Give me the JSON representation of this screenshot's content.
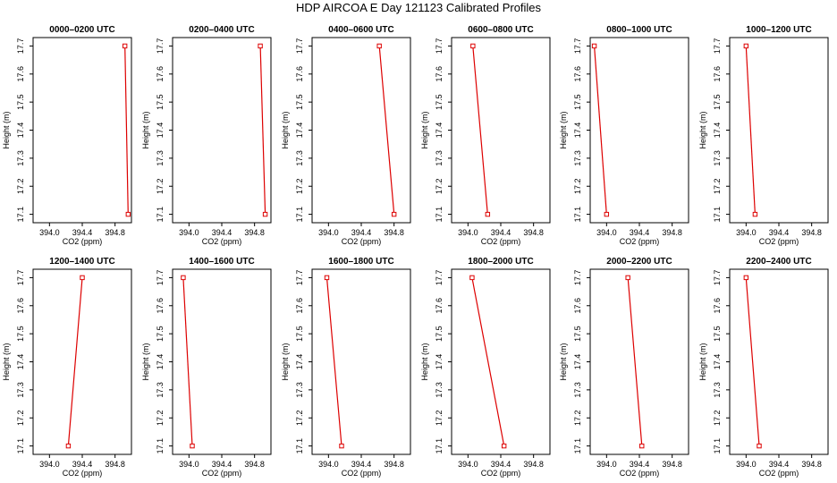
{
  "figure": {
    "title": "HDP AIRCOA E  Day 121123  Calibrated Profiles"
  },
  "style": {
    "line_color": "#dd0000",
    "frame_color": "#000000"
  },
  "chart_data": [
    {
      "type": "line",
      "title": "0000–0200 UTC",
      "xlabel": "CO2 (ppm)",
      "ylabel": "Height (m)",
      "xlim": [
        393.8,
        395.0
      ],
      "ylim": [
        17.07,
        17.73
      ],
      "xticks": [
        "394.0",
        "394.4",
        "394.8"
      ],
      "yticks": [
        "17.1",
        "17.2",
        "17.3",
        "17.4",
        "17.5",
        "17.6",
        "17.7"
      ],
      "x": [
        394.92,
        394.96
      ],
      "y": [
        17.7,
        17.1
      ]
    },
    {
      "type": "line",
      "title": "0200–0400 UTC",
      "xlabel": "CO2 (ppm)",
      "ylabel": "Height (m)",
      "xlim": [
        393.8,
        395.0
      ],
      "ylim": [
        17.07,
        17.73
      ],
      "xticks": [
        "394.0",
        "394.4",
        "394.8"
      ],
      "yticks": [
        "17.1",
        "17.2",
        "17.3",
        "17.4",
        "17.5",
        "17.6",
        "17.7"
      ],
      "x": [
        394.87,
        394.93
      ],
      "y": [
        17.7,
        17.1
      ]
    },
    {
      "type": "line",
      "title": "0400–0600 UTC",
      "xlabel": "CO2 (ppm)",
      "ylabel": "Height (m)",
      "xlim": [
        393.8,
        395.0
      ],
      "ylim": [
        17.07,
        17.73
      ],
      "xticks": [
        "394.0",
        "394.4",
        "394.8"
      ],
      "yticks": [
        "17.1",
        "17.2",
        "17.3",
        "17.4",
        "17.5",
        "17.6",
        "17.7"
      ],
      "x": [
        394.62,
        394.8
      ],
      "y": [
        17.7,
        17.1
      ]
    },
    {
      "type": "line",
      "title": "0600–0800 UTC",
      "xlabel": "CO2 (ppm)",
      "ylabel": "Height (m)",
      "xlim": [
        393.8,
        395.0
      ],
      "ylim": [
        17.07,
        17.73
      ],
      "xticks": [
        "394.0",
        "394.4",
        "394.8"
      ],
      "yticks": [
        "17.1",
        "17.2",
        "17.3",
        "17.4",
        "17.5",
        "17.6",
        "17.7"
      ],
      "x": [
        394.06,
        394.24
      ],
      "y": [
        17.7,
        17.1
      ]
    },
    {
      "type": "line",
      "title": "0800–1000 UTC",
      "xlabel": "CO2 (ppm)",
      "ylabel": "Height (m)",
      "xlim": [
        393.8,
        395.0
      ],
      "ylim": [
        17.07,
        17.73
      ],
      "xticks": [
        "394.0",
        "394.4",
        "394.8"
      ],
      "yticks": [
        "17.1",
        "17.2",
        "17.3",
        "17.4",
        "17.5",
        "17.6",
        "17.7"
      ],
      "x": [
        393.85,
        394.0
      ],
      "y": [
        17.7,
        17.1
      ]
    },
    {
      "type": "line",
      "title": "1000–1200 UTC",
      "xlabel": "CO2 (ppm)",
      "ylabel": "Height (m)",
      "xlim": [
        393.8,
        395.0
      ],
      "ylim": [
        17.07,
        17.73
      ],
      "xticks": [
        "394.0",
        "394.4",
        "394.8"
      ],
      "yticks": [
        "17.1",
        "17.2",
        "17.3",
        "17.4",
        "17.5",
        "17.6",
        "17.7"
      ],
      "x": [
        394.0,
        394.11
      ],
      "y": [
        17.7,
        17.1
      ]
    },
    {
      "type": "line",
      "title": "1200–1400 UTC",
      "xlabel": "CO2 (ppm)",
      "ylabel": "Height (m)",
      "xlim": [
        393.8,
        395.0
      ],
      "ylim": [
        17.07,
        17.73
      ],
      "xticks": [
        "394.0",
        "394.4",
        "394.8"
      ],
      "yticks": [
        "17.1",
        "17.2",
        "17.3",
        "17.4",
        "17.5",
        "17.6",
        "17.7"
      ],
      "x": [
        394.4,
        394.23
      ],
      "y": [
        17.7,
        17.1
      ]
    },
    {
      "type": "line",
      "title": "1400–1600 UTC",
      "xlabel": "CO2 (ppm)",
      "ylabel": "Height (m)",
      "xlim": [
        393.8,
        395.0
      ],
      "ylim": [
        17.07,
        17.73
      ],
      "xticks": [
        "394.0",
        "394.4",
        "394.8"
      ],
      "yticks": [
        "17.1",
        "17.2",
        "17.3",
        "17.4",
        "17.5",
        "17.6",
        "17.7"
      ],
      "x": [
        393.93,
        394.04
      ],
      "y": [
        17.7,
        17.1
      ]
    },
    {
      "type": "line",
      "title": "1600–1800 UTC",
      "xlabel": "CO2 (ppm)",
      "ylabel": "Height (m)",
      "xlim": [
        393.8,
        395.0
      ],
      "ylim": [
        17.07,
        17.73
      ],
      "xticks": [
        "394.0",
        "394.4",
        "394.8"
      ],
      "yticks": [
        "17.1",
        "17.2",
        "17.3",
        "17.4",
        "17.5",
        "17.6",
        "17.7"
      ],
      "x": [
        393.98,
        394.16
      ],
      "y": [
        17.7,
        17.1
      ]
    },
    {
      "type": "line",
      "title": "1800–2000 UTC",
      "xlabel": "CO2 (ppm)",
      "ylabel": "Height (m)",
      "xlim": [
        393.8,
        395.0
      ],
      "ylim": [
        17.07,
        17.73
      ],
      "xticks": [
        "394.0",
        "394.4",
        "394.8"
      ],
      "yticks": [
        "17.1",
        "17.2",
        "17.3",
        "17.4",
        "17.5",
        "17.6",
        "17.7"
      ],
      "x": [
        394.05,
        394.44
      ],
      "y": [
        17.7,
        17.1
      ]
    },
    {
      "type": "line",
      "title": "2000–2200 UTC",
      "xlabel": "CO2 (ppm)",
      "ylabel": "Height (m)",
      "xlim": [
        393.8,
        395.0
      ],
      "ylim": [
        17.07,
        17.73
      ],
      "xticks": [
        "394.0",
        "394.4",
        "394.8"
      ],
      "yticks": [
        "17.1",
        "17.2",
        "17.3",
        "17.4",
        "17.5",
        "17.6",
        "17.7"
      ],
      "x": [
        394.26,
        394.43
      ],
      "y": [
        17.7,
        17.1
      ]
    },
    {
      "type": "line",
      "title": "2200–2400 UTC",
      "xlabel": "CO2 (ppm)",
      "ylabel": "Height (m)",
      "xlim": [
        393.8,
        395.0
      ],
      "ylim": [
        17.07,
        17.73
      ],
      "xticks": [
        "394.0",
        "394.4",
        "394.8"
      ],
      "yticks": [
        "17.1",
        "17.2",
        "17.3",
        "17.4",
        "17.5",
        "17.6",
        "17.7"
      ],
      "x": [
        394.0,
        394.16
      ],
      "y": [
        17.7,
        17.1
      ]
    }
  ]
}
